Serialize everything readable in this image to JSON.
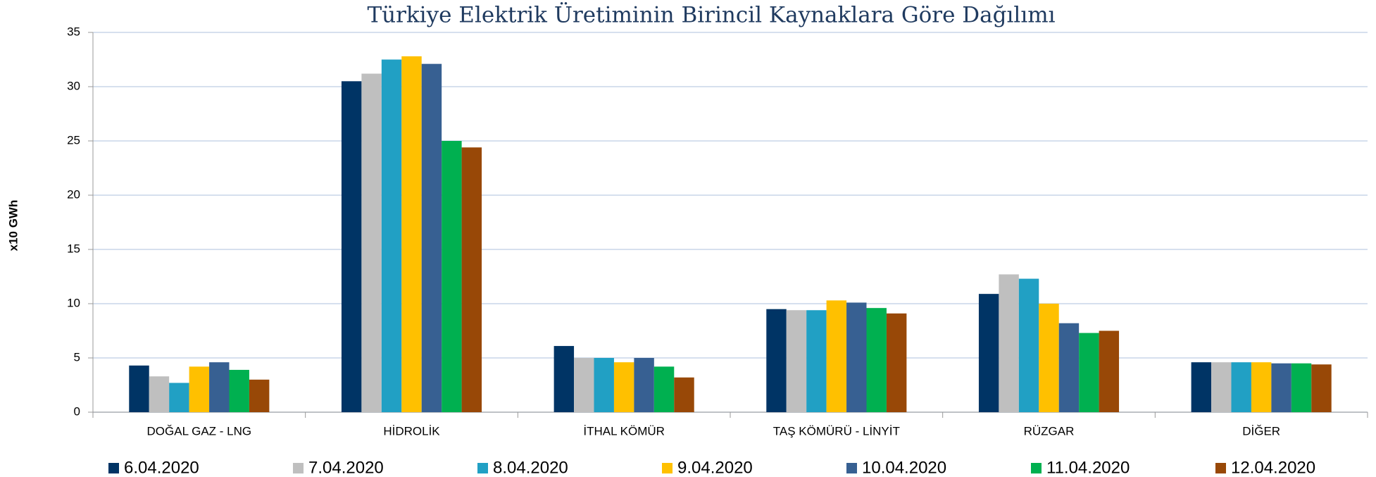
{
  "chart_data": {
    "type": "bar",
    "title": "Türkiye Elektrik Üretiminin Birincil Kaynaklara Göre Dağılımı",
    "y_label": "x10 GWh",
    "categories": [
      "DOĞAL GAZ - LNG",
      "HİDROLİK",
      "İTHAL KÖMÜR",
      "TAŞ KÖMÜRÜ - LİNYİT",
      "RÜZGAR",
      "DİĞER"
    ],
    "series": [
      {
        "name": "6.04.2020",
        "color": "#003465",
        "values": [
          4.3,
          30.5,
          6.1,
          9.5,
          10.9,
          4.6
        ]
      },
      {
        "name": "7.04.2020",
        "color": "#bfbfbf",
        "values": [
          3.3,
          31.2,
          5.0,
          9.4,
          12.7,
          4.6
        ]
      },
      {
        "name": "8.04.2020",
        "color": "#21a0c4",
        "values": [
          2.7,
          32.5,
          5.0,
          9.4,
          12.3,
          4.6
        ]
      },
      {
        "name": "9.04.2020",
        "color": "#ffc000",
        "values": [
          4.2,
          32.8,
          4.6,
          10.3,
          10.0,
          4.6
        ]
      },
      {
        "name": "10.04.2020",
        "color": "#376092",
        "values": [
          4.6,
          32.1,
          5.0,
          10.1,
          8.2,
          4.5
        ]
      },
      {
        "name": "11.04.2020",
        "color": "#00b050",
        "values": [
          3.9,
          25.0,
          4.2,
          9.6,
          7.3,
          4.5
        ]
      },
      {
        "name": "12.04.2020",
        "color": "#984807",
        "values": [
          3.0,
          24.4,
          3.2,
          9.1,
          7.5,
          4.4
        ]
      }
    ],
    "ylim": [
      0,
      35
    ],
    "yticks": [
      0,
      5,
      10,
      15,
      20,
      25,
      30,
      35
    ],
    "grid": true,
    "legend": "bottom"
  }
}
